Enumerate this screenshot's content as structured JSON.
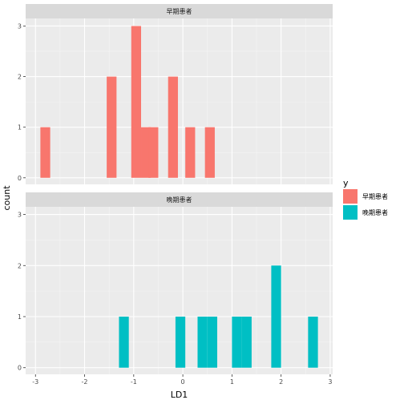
{
  "chart_data": {
    "type": "histogram",
    "xlabel": "LD1",
    "ylabel": "count",
    "xlim": [
      -3.2,
      3.05
    ],
    "ylim": [
      -0.13,
      3.15
    ],
    "x_ticks": [
      -3,
      -2,
      -1,
      0,
      1,
      2,
      3
    ],
    "y_ticks": [
      0,
      1,
      2,
      3
    ],
    "bin_width": 0.2,
    "grid": true,
    "legend": {
      "title": "y",
      "position": "right",
      "entries": [
        {
          "label": "早期患者",
          "color": "#F8766D"
        },
        {
          "label": "晚期患者",
          "color": "#00BFC4"
        }
      ]
    },
    "panels": [
      {
        "strip": "早期患者",
        "color": "#F8766D",
        "bins": [
          {
            "x": -2.8,
            "count": 1
          },
          {
            "x": -1.45,
            "count": 2
          },
          {
            "x": -0.95,
            "count": 3
          },
          {
            "x": -0.75,
            "count": 1
          },
          {
            "x": -0.6,
            "count": 1
          },
          {
            "x": -0.2,
            "count": 2
          },
          {
            "x": 0.15,
            "count": 1
          },
          {
            "x": 0.55,
            "count": 1
          }
        ]
      },
      {
        "strip": "晚期患者",
        "color": "#00BFC4",
        "bins": [
          {
            "x": -1.2,
            "count": 1
          },
          {
            "x": -0.05,
            "count": 1
          },
          {
            "x": 0.4,
            "count": 1
          },
          {
            "x": 0.6,
            "count": 1
          },
          {
            "x": 1.1,
            "count": 1
          },
          {
            "x": 1.3,
            "count": 1
          },
          {
            "x": 1.9,
            "count": 2
          },
          {
            "x": 2.65,
            "count": 1
          }
        ]
      }
    ]
  }
}
